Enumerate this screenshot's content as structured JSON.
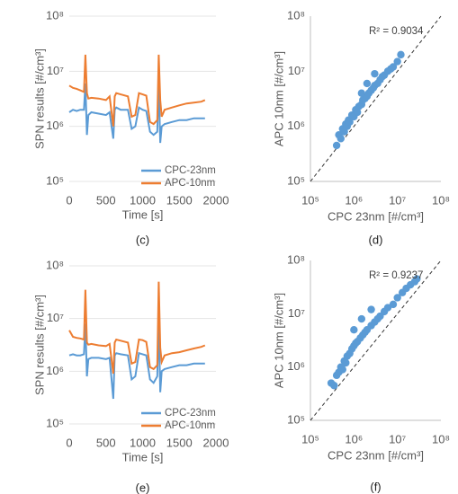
{
  "chart_data": [
    {
      "type": "line",
      "caption": "(c)",
      "xlabel": "Time [s]",
      "ylabel": "SPN results  [#/cm³]",
      "xlim": [
        0,
        2000
      ],
      "xticks": [
        0,
        500,
        1000,
        1500,
        2000
      ],
      "ylim": [
        100000,
        100000000
      ],
      "log_y": true,
      "grid": true,
      "legend": "lower right",
      "yticks": [
        {
          "value": 100000,
          "label": "10⁵"
        },
        {
          "value": 1000000,
          "label": "10⁶"
        },
        {
          "value": 10000000,
          "label": "10⁷"
        },
        {
          "value": 100000000,
          "label": "10⁸"
        }
      ],
      "x": [
        0,
        50,
        100,
        150,
        200,
        220,
        240,
        260,
        300,
        400,
        500,
        550,
        600,
        620,
        640,
        700,
        800,
        850,
        900,
        950,
        1000,
        1050,
        1100,
        1150,
        1200,
        1220,
        1240,
        1260,
        1300,
        1400,
        1500,
        1600,
        1700,
        1800,
        1850
      ],
      "series": [
        {
          "name": "CPC-23nm",
          "color": "#5b9bd5",
          "values": [
            1800000,
            2000000,
            1900000,
            2000000,
            2000000,
            6000000,
            700000,
            1600000,
            1800000,
            1700000,
            1600000,
            1800000,
            600000,
            2000000,
            2200000,
            2000000,
            2000000,
            900000,
            1000000,
            2200000,
            2000000,
            1900000,
            800000,
            700000,
            800000,
            6000000,
            500000,
            1000000,
            1100000,
            1200000,
            1300000,
            1300000,
            1400000,
            1400000,
            1400000
          ]
        },
        {
          "name": "APC-10nm",
          "color": "#ed7d31",
          "values": [
            5500000,
            5000000,
            4800000,
            4500000,
            4200000,
            20000000,
            4000000,
            3200000,
            3300000,
            3200000,
            3000000,
            3500000,
            1000000,
            3500000,
            4000000,
            3800000,
            3500000,
            1500000,
            1600000,
            4000000,
            3800000,
            3600000,
            1200000,
            1100000,
            1300000,
            20000000,
            3000000,
            1500000,
            2000000,
            2200000,
            2400000,
            2600000,
            2700000,
            2800000,
            3000000
          ]
        }
      ]
    },
    {
      "type": "scatter",
      "caption": "(d)",
      "xlabel": "CPC 23nm [#/cm³]",
      "ylabel": "APC 10nm [#/cm³]",
      "annotation": "R² = 0.9034",
      "xlim": [
        100000,
        100000000
      ],
      "ylim": [
        100000,
        100000000
      ],
      "log_x": true,
      "log_y": true,
      "identity_line": true,
      "color": "#5b9bd5",
      "xticks": [
        {
          "value": 100000,
          "label": "10⁵"
        },
        {
          "value": 1000000,
          "label": "10⁶"
        },
        {
          "value": 10000000,
          "label": "10⁷"
        },
        {
          "value": 100000000,
          "label": "10⁸"
        }
      ],
      "yticks": [
        {
          "value": 100000,
          "label": "10⁵"
        },
        {
          "value": 1000000,
          "label": "10⁶"
        },
        {
          "value": 10000000,
          "label": "10⁷"
        },
        {
          "value": 100000000,
          "label": "10⁸"
        }
      ],
      "x": [
        400000,
        450000,
        500000,
        550000,
        600000,
        650000,
        700000,
        750000,
        800000,
        900000,
        1000000,
        1100000,
        1200000,
        1300000,
        1500000,
        1600000,
        1800000,
        2000000,
        2200000,
        2500000,
        2800000,
        3000000,
        3500000,
        4000000,
        4500000,
        5000000,
        6000000,
        7000000,
        8000000,
        10000000,
        12000000,
        1500000,
        2000000,
        3000000
      ],
      "y": [
        450000,
        700000,
        600000,
        900000,
        800000,
        1100000,
        1000000,
        1300000,
        1200000,
        1600000,
        1500000,
        2000000,
        1800000,
        2300000,
        2500000,
        3000000,
        3200000,
        3500000,
        4000000,
        4500000,
        5000000,
        5500000,
        6000000,
        7000000,
        8000000,
        8500000,
        10000000,
        11000000,
        12000000,
        15000000,
        20000000,
        4000000,
        6000000,
        9000000
      ]
    },
    {
      "type": "line",
      "caption": "(e)",
      "xlabel": "Time [s]",
      "ylabel": "SPN results  [#/cm³]",
      "xlim": [
        0,
        2000
      ],
      "xticks": [
        0,
        500,
        1000,
        1500,
        2000
      ],
      "ylim": [
        100000,
        100000000
      ],
      "log_y": true,
      "grid": true,
      "legend": "lower right",
      "yticks": [
        {
          "value": 100000,
          "label": "10⁵"
        },
        {
          "value": 1000000,
          "label": "10⁶"
        },
        {
          "value": 10000000,
          "label": "10⁷"
        },
        {
          "value": 100000000,
          "label": "10⁸"
        }
      ],
      "x": [
        0,
        50,
        100,
        150,
        200,
        220,
        240,
        260,
        300,
        400,
        500,
        550,
        600,
        620,
        640,
        700,
        800,
        850,
        900,
        950,
        1000,
        1050,
        1100,
        1150,
        1200,
        1220,
        1240,
        1260,
        1300,
        1400,
        1500,
        1600,
        1700,
        1800,
        1850
      ],
      "series": [
        {
          "name": "CPC-23nm",
          "color": "#5b9bd5",
          "values": [
            2000000,
            2100000,
            2000000,
            2000000,
            2100000,
            8000000,
            800000,
            1700000,
            1800000,
            1800000,
            1700000,
            1800000,
            300000,
            2000000,
            2200000,
            2100000,
            2000000,
            700000,
            800000,
            2200000,
            2100000,
            2000000,
            700000,
            600000,
            800000,
            9000000,
            400000,
            1000000,
            1100000,
            1200000,
            1300000,
            1300000,
            1400000,
            1400000,
            1400000
          ]
        },
        {
          "name": "APC-10nm",
          "color": "#ed7d31",
          "values": [
            6000000,
            4500000,
            4300000,
            4200000,
            4000000,
            35000000,
            3500000,
            3200000,
            3300000,
            3100000,
            3000000,
            3300000,
            900000,
            3500000,
            4000000,
            3800000,
            3500000,
            1400000,
            1500000,
            4000000,
            3900000,
            3600000,
            1200000,
            1100000,
            1300000,
            50000000,
            2800000,
            1500000,
            2000000,
            2200000,
            2300000,
            2500000,
            2700000,
            2900000,
            3100000
          ]
        }
      ]
    },
    {
      "type": "scatter",
      "caption": "(f)",
      "xlabel": "CPC 23nm [#/cm³]",
      "ylabel": "APC 10nm [#/cm³]",
      "annotation": "R² = 0.9237",
      "xlim": [
        100000,
        100000000
      ],
      "ylim": [
        100000,
        100000000
      ],
      "log_x": true,
      "log_y": true,
      "identity_line": true,
      "color": "#5b9bd5",
      "xticks": [
        {
          "value": 100000,
          "label": "10⁵"
        },
        {
          "value": 1000000,
          "label": "10⁶"
        },
        {
          "value": 10000000,
          "label": "10⁷"
        },
        {
          "value": 100000000,
          "label": "10⁸"
        }
      ],
      "yticks": [
        {
          "value": 100000,
          "label": "10⁵"
        },
        {
          "value": 1000000,
          "label": "10⁶"
        },
        {
          "value": 10000000,
          "label": "10⁷"
        },
        {
          "value": 100000000,
          "label": "10⁸"
        }
      ],
      "x": [
        300000,
        350000,
        400000,
        450000,
        500000,
        550000,
        600000,
        650000,
        700000,
        800000,
        900000,
        1000000,
        1100000,
        1200000,
        1400000,
        1600000,
        1800000,
        2000000,
        2500000,
        3000000,
        3500000,
        4000000,
        5000000,
        6000000,
        8000000,
        10000000,
        13000000,
        16000000,
        20000000,
        25000000,
        28000000,
        1000000,
        1500000,
        2500000
      ],
      "y": [
        500000,
        450000,
        700000,
        800000,
        1000000,
        900000,
        1300000,
        1200000,
        1600000,
        1800000,
        2200000,
        2500000,
        2800000,
        3000000,
        3500000,
        4000000,
        4500000,
        5000000,
        6000000,
        7000000,
        8000000,
        9000000,
        11000000,
        13000000,
        15000000,
        20000000,
        25000000,
        30000000,
        35000000,
        40000000,
        45000000,
        5000000,
        8000000,
        12000000
      ]
    }
  ]
}
